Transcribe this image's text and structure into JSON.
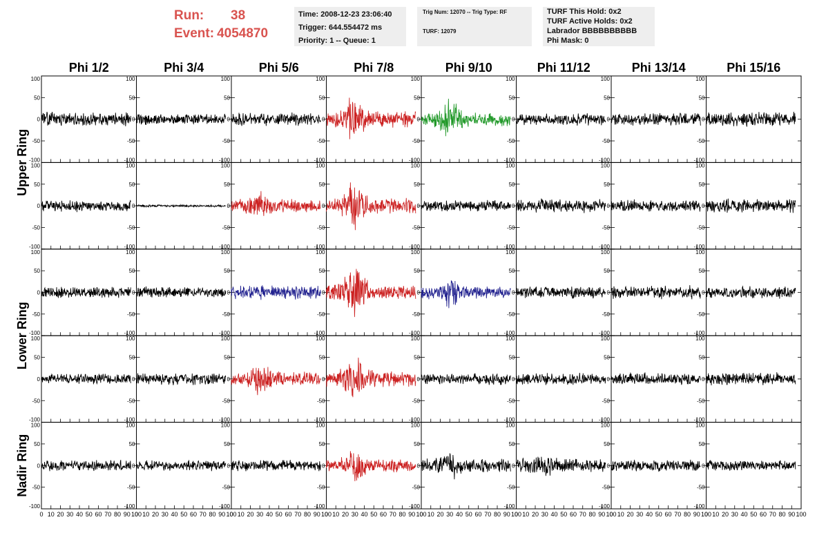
{
  "header": {
    "run_label": "Run:",
    "run_value": "38",
    "event_label": "Event:",
    "event_value": "4054870",
    "time": "Time: 2008-12-23 23:06:40",
    "trigger": "Trigger: 644.554472 ms",
    "priority": "Priority: 1 -- Queue: 1",
    "trig_num": "Trig Num: 12070 -- Trig Type: RF",
    "turf": "TURF: 12079",
    "turf_this_hold": "TURF This Hold: 0x2",
    "turf_active_holds": "TURF Active Holds: 0x2",
    "labrador": "Labrador BBBBBBBBBB",
    "phi_mask": "Phi Mask: 0"
  },
  "chart_data": {
    "type": "line",
    "columns": [
      "Phi 1/2",
      "Phi 3/4",
      "Phi 5/6",
      "Phi 7/8",
      "Phi 9/10",
      "Phi 11/12",
      "Phi 13/14",
      "Phi 15/16"
    ],
    "row_groups": [
      {
        "label": "Upper Ring",
        "rows": [
          0,
          1
        ]
      },
      {
        "label": "Lower Ring",
        "rows": [
          2,
          3
        ]
      },
      {
        "label": "Nadir Ring",
        "rows": [
          4
        ]
      }
    ],
    "xlim": [
      0,
      100
    ],
    "ylim": [
      -100,
      100
    ],
    "x_ticks": [
      "0",
      "10",
      "20",
      "30",
      "40",
      "50",
      "60",
      "70",
      "80",
      "90",
      "100"
    ],
    "y_ticks": [
      "100",
      "50",
      "0",
      "-50",
      "-100"
    ],
    "grid": false,
    "colors": {
      "normal": "#000000",
      "red": "#cc2222",
      "green": "#22992a",
      "blue": "#22228f"
    },
    "panels": [
      [
        {
          "color": "normal",
          "amp": 18,
          "burst": 0,
          "seed": 11
        },
        {
          "color": "normal",
          "amp": 14,
          "burst": 0,
          "seed": 12
        },
        {
          "color": "normal",
          "amp": 17,
          "burst": 0,
          "seed": 13
        },
        {
          "color": "red",
          "amp": 20,
          "burst": 45,
          "seed": 14
        },
        {
          "color": "green",
          "amp": 18,
          "burst": 40,
          "seed": 15
        },
        {
          "color": "normal",
          "amp": 15,
          "burst": 0,
          "seed": 16
        },
        {
          "color": "normal",
          "amp": 17,
          "burst": 0,
          "seed": 17
        },
        {
          "color": "normal",
          "amp": 18,
          "burst": 0,
          "seed": 18
        }
      ],
      [
        {
          "color": "normal",
          "amp": 15,
          "burst": 0,
          "seed": 21
        },
        {
          "color": "normal",
          "amp": 3,
          "burst": 0,
          "seed": 22
        },
        {
          "color": "red",
          "amp": 16,
          "burst": 25,
          "seed": 23
        },
        {
          "color": "red",
          "amp": 20,
          "burst": 45,
          "seed": 24
        },
        {
          "color": "normal",
          "amp": 15,
          "burst": 0,
          "seed": 25
        },
        {
          "color": "normal",
          "amp": 17,
          "burst": 0,
          "seed": 26
        },
        {
          "color": "normal",
          "amp": 15,
          "burst": 0,
          "seed": 27
        },
        {
          "color": "normal",
          "amp": 18,
          "burst": 0,
          "seed": 28
        }
      ],
      [
        {
          "color": "normal",
          "amp": 14,
          "burst": 0,
          "seed": 31
        },
        {
          "color": "normal",
          "amp": 14,
          "burst": 0,
          "seed": 32
        },
        {
          "color": "blue",
          "amp": 18,
          "burst": 0,
          "seed": 33
        },
        {
          "color": "red",
          "amp": 20,
          "burst": 55,
          "seed": 34
        },
        {
          "color": "blue",
          "amp": 16,
          "burst": 25,
          "seed": 35
        },
        {
          "color": "normal",
          "amp": 15,
          "burst": 0,
          "seed": 36
        },
        {
          "color": "normal",
          "amp": 17,
          "burst": 0,
          "seed": 37
        },
        {
          "color": "normal",
          "amp": 15,
          "burst": 0,
          "seed": 38
        }
      ],
      [
        {
          "color": "normal",
          "amp": 13,
          "burst": 0,
          "seed": 41
        },
        {
          "color": "normal",
          "amp": 15,
          "burst": 0,
          "seed": 42
        },
        {
          "color": "red",
          "amp": 18,
          "burst": 30,
          "seed": 43
        },
        {
          "color": "red",
          "amp": 20,
          "burst": 40,
          "seed": 44
        },
        {
          "color": "normal",
          "amp": 14,
          "burst": 0,
          "seed": 45
        },
        {
          "color": "normal",
          "amp": 15,
          "burst": 0,
          "seed": 46
        },
        {
          "color": "normal",
          "amp": 16,
          "burst": 0,
          "seed": 47
        },
        {
          "color": "normal",
          "amp": 16,
          "burst": 0,
          "seed": 48
        }
      ],
      [
        {
          "color": "normal",
          "amp": 14,
          "burst": 0,
          "seed": 51
        },
        {
          "color": "normal",
          "amp": 13,
          "burst": 0,
          "seed": 52
        },
        {
          "color": "normal",
          "amp": 14,
          "burst": 0,
          "seed": 53
        },
        {
          "color": "red",
          "amp": 17,
          "burst": 30,
          "seed": 54
        },
        {
          "color": "normal",
          "amp": 18,
          "burst": 20,
          "seed": 55
        },
        {
          "color": "normal",
          "amp": 18,
          "burst": 10,
          "seed": 56
        },
        {
          "color": "normal",
          "amp": 16,
          "burst": 0,
          "seed": 57
        },
        {
          "color": "normal",
          "amp": 13,
          "burst": 0,
          "seed": 58
        }
      ]
    ]
  }
}
